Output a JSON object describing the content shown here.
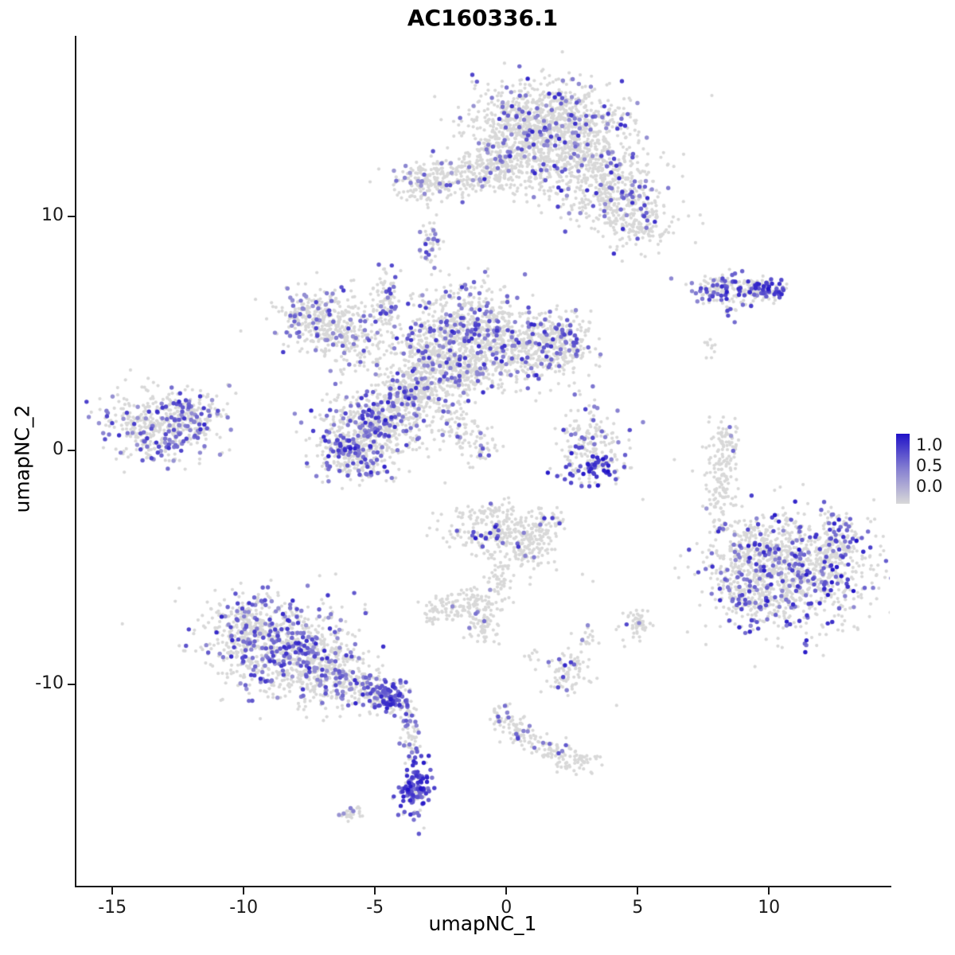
{
  "figure": {
    "title": "AC160336.1",
    "xlabel": "umapNC_1",
    "ylabel": "umapNC_2"
  },
  "chart_data": {
    "type": "scatter",
    "subtype": "umap-feature-plot",
    "title": "AC160336.1",
    "xlabel": "umapNC_1",
    "ylabel": "umapNC_2",
    "xlim": [
      -16.4,
      14.6
    ],
    "ylim": [
      -18.6,
      17.7
    ],
    "x_ticks": [
      -15,
      -10,
      -5,
      0,
      5,
      10
    ],
    "y_ticks": [
      -10,
      0,
      10
    ],
    "grid": false,
    "legend": {
      "position": "right",
      "ticks": [
        "1.0",
        "0.5",
        "0.0"
      ],
      "low_value": 0.0,
      "high_value": 1.0
    },
    "colors": {
      "low": "#d8d8d8",
      "high": "#2012c8",
      "background": "#ffffff",
      "axis": "#1a1a1a"
    },
    "point_style": {
      "base_radius": 2.1,
      "expr_radius": 2.7
    },
    "seed": 42,
    "cluster_fields": [
      "x",
      "y",
      "sx",
      "sy",
      "n",
      "expr_frac",
      "expr_vmin",
      "expr_vmax"
    ],
    "clusters": [
      [
        1.4,
        14.3,
        1.5,
        0.8,
        650,
        0.1,
        0.35,
        0.9
      ],
      [
        2.4,
        12.6,
        1.4,
        0.9,
        550,
        0.1,
        0.35,
        0.9
      ],
      [
        0.4,
        13.0,
        0.8,
        0.8,
        220,
        0.12,
        0.35,
        0.8
      ],
      [
        3.9,
        11.0,
        1.0,
        0.8,
        320,
        0.1,
        0.35,
        0.9
      ],
      [
        5.0,
        9.7,
        0.7,
        0.6,
        160,
        0.12,
        0.4,
        0.9
      ],
      [
        -1.9,
        11.7,
        1.3,
        0.45,
        230,
        0.05,
        0.3,
        0.7
      ],
      [
        -3.2,
        11.4,
        0.5,
        0.4,
        90,
        0.08,
        0.3,
        0.7
      ],
      [
        -0.5,
        12.1,
        0.5,
        0.5,
        90,
        0.05,
        0.3,
        0.7
      ],
      [
        -2.9,
        8.8,
        0.22,
        0.4,
        45,
        0.45,
        0.4,
        0.8
      ],
      [
        8.1,
        6.9,
        0.55,
        0.28,
        90,
        0.25,
        0.4,
        0.9
      ],
      [
        9.2,
        6.8,
        0.7,
        0.3,
        110,
        0.3,
        0.4,
        1.0
      ],
      [
        9.95,
        6.95,
        0.35,
        0.25,
        55,
        0.5,
        0.6,
        1.0
      ],
      [
        8.6,
        5.9,
        0.15,
        0.2,
        12,
        0.3,
        0.5,
        0.9
      ],
      [
        7.7,
        4.35,
        0.15,
        0.25,
        10,
        0,
        0,
        0
      ],
      [
        -7.1,
        5.7,
        0.85,
        0.65,
        280,
        0.15,
        0.35,
        0.8
      ],
      [
        -5.9,
        4.7,
        0.7,
        0.6,
        200,
        0.12,
        0.35,
        0.8
      ],
      [
        -4.5,
        6.3,
        0.3,
        0.8,
        90,
        0.2,
        0.4,
        0.8
      ],
      [
        -1.3,
        5.4,
        1.1,
        0.85,
        480,
        0.18,
        0.4,
        0.9
      ],
      [
        0.7,
        4.4,
        1.2,
        0.8,
        420,
        0.15,
        0.4,
        0.9
      ],
      [
        -2.7,
        4.1,
        1.0,
        0.8,
        330,
        0.15,
        0.35,
        0.85
      ],
      [
        2.0,
        4.6,
        0.6,
        0.6,
        170,
        0.15,
        0.4,
        0.85
      ],
      [
        -1.8,
        3.3,
        0.8,
        0.5,
        200,
        0.15,
        0.4,
        0.85
      ],
      [
        -3.4,
        2.6,
        0.5,
        0.5,
        120,
        0.18,
        0.4,
        0.85
      ],
      [
        -2.2,
        1.4,
        0.5,
        0.7,
        90,
        0.1,
        0.35,
        0.7
      ],
      [
        -1.2,
        0.3,
        0.4,
        0.5,
        50,
        0.08,
        0.35,
        0.7
      ],
      [
        -5.1,
        0.9,
        1.0,
        0.85,
        470,
        0.22,
        0.4,
        0.95
      ],
      [
        -5.9,
        -0.2,
        0.65,
        0.5,
        220,
        0.25,
        0.45,
        0.95
      ],
      [
        -4.1,
        2.0,
        0.65,
        0.55,
        180,
        0.18,
        0.4,
        0.85
      ],
      [
        -13.3,
        1.0,
        1.0,
        0.75,
        420,
        0.25,
        0.35,
        0.85
      ],
      [
        -11.8,
        1.6,
        0.5,
        0.5,
        110,
        0.25,
        0.4,
        0.9
      ],
      [
        3.2,
        0.4,
        0.6,
        0.7,
        160,
        0.18,
        0.4,
        0.9
      ],
      [
        3.2,
        -0.8,
        0.8,
        0.3,
        90,
        0.45,
        0.6,
        1.0
      ],
      [
        8.2,
        -1.3,
        0.3,
        1.0,
        130,
        0.03,
        0.3,
        0.6
      ],
      [
        8.4,
        0.3,
        0.25,
        0.4,
        50,
        0.03,
        0.3,
        0.6
      ],
      [
        11.2,
        -5.2,
        1.5,
        1.3,
        850,
        0.2,
        0.4,
        1.0
      ],
      [
        9.4,
        -4.3,
        0.8,
        0.8,
        240,
        0.15,
        0.4,
        0.9
      ],
      [
        9.2,
        -6.3,
        0.6,
        0.6,
        140,
        0.2,
        0.4,
        0.9
      ],
      [
        12.6,
        -4.0,
        0.5,
        0.6,
        110,
        0.25,
        0.5,
        1.0
      ],
      [
        -0.4,
        -3.3,
        0.9,
        0.6,
        240,
        0.07,
        0.5,
        1.0
      ],
      [
        0.7,
        -4.2,
        0.6,
        0.5,
        120,
        0.05,
        0.4,
        0.9
      ],
      [
        1.5,
        -3.3,
        0.4,
        0.4,
        60,
        0.05,
        0.4,
        0.8
      ],
      [
        -1.3,
        -6.6,
        0.5,
        0.4,
        110,
        0.05,
        0.3,
        0.6
      ],
      [
        -2.6,
        -6.9,
        0.35,
        0.3,
        55,
        0.04,
        0.3,
        0.6
      ],
      [
        -0.9,
        -7.7,
        0.3,
        0.3,
        40,
        0.04,
        0.3,
        0.6
      ],
      [
        -0.2,
        -5.4,
        0.25,
        0.5,
        45,
        0.04,
        0.3,
        0.6
      ],
      [
        -8.6,
        -8.4,
        1.3,
        1.0,
        750,
        0.28,
        0.35,
        0.9
      ],
      [
        -6.7,
        -9.6,
        0.9,
        0.7,
        280,
        0.2,
        0.35,
        0.85
      ],
      [
        -9.9,
        -7.3,
        0.6,
        0.6,
        150,
        0.22,
        0.35,
        0.85
      ],
      [
        -5.2,
        -10.3,
        0.5,
        0.4,
        120,
        0.3,
        0.4,
        0.9
      ],
      [
        -4.3,
        -10.6,
        0.35,
        0.3,
        90,
        0.6,
        0.5,
        1.0
      ],
      [
        -3.7,
        -11.6,
        0.18,
        0.5,
        45,
        0.25,
        0.4,
        0.9
      ],
      [
        -3.6,
        -12.7,
        0.15,
        0.35,
        25,
        0.2,
        0.4,
        0.8
      ],
      [
        -3.5,
        -14.5,
        0.3,
        0.55,
        140,
        0.75,
        0.5,
        1.0
      ],
      [
        -5.9,
        -15.5,
        0.25,
        0.18,
        25,
        0.05,
        0.3,
        0.6
      ],
      [
        2.3,
        -9.5,
        0.4,
        0.45,
        85,
        0.12,
        0.4,
        0.9
      ],
      [
        3.1,
        -8.0,
        0.2,
        0.2,
        18,
        0.1,
        0.4,
        0.7
      ],
      [
        4.9,
        -7.4,
        0.28,
        0.38,
        55,
        0.08,
        0.4,
        0.8
      ],
      [
        -0.2,
        -11.4,
        0.3,
        0.3,
        40,
        0.08,
        0.4,
        0.8
      ],
      [
        0.6,
        -12.1,
        0.35,
        0.3,
        55,
        0.15,
        0.4,
        0.9
      ],
      [
        1.7,
        -12.8,
        0.35,
        0.25,
        45,
        0.08,
        0.4,
        0.8
      ],
      [
        2.7,
        -13.2,
        0.4,
        0.25,
        60,
        0.03,
        0.3,
        0.6
      ],
      [
        0.9,
        -8.8,
        0.15,
        0.15,
        8,
        0.1,
        0.4,
        0.7
      ]
    ],
    "singles": [
      [
        -10.6,
        2.8
      ],
      [
        2.9,
        -5.3
      ],
      [
        3.3,
        -5.6
      ],
      [
        0.1,
        -6.3
      ],
      [
        5.2,
        -2.1
      ],
      [
        7.6,
        -8.3
      ],
      [
        4.2,
        -10.9
      ],
      [
        6.4,
        -0.4
      ]
    ]
  }
}
